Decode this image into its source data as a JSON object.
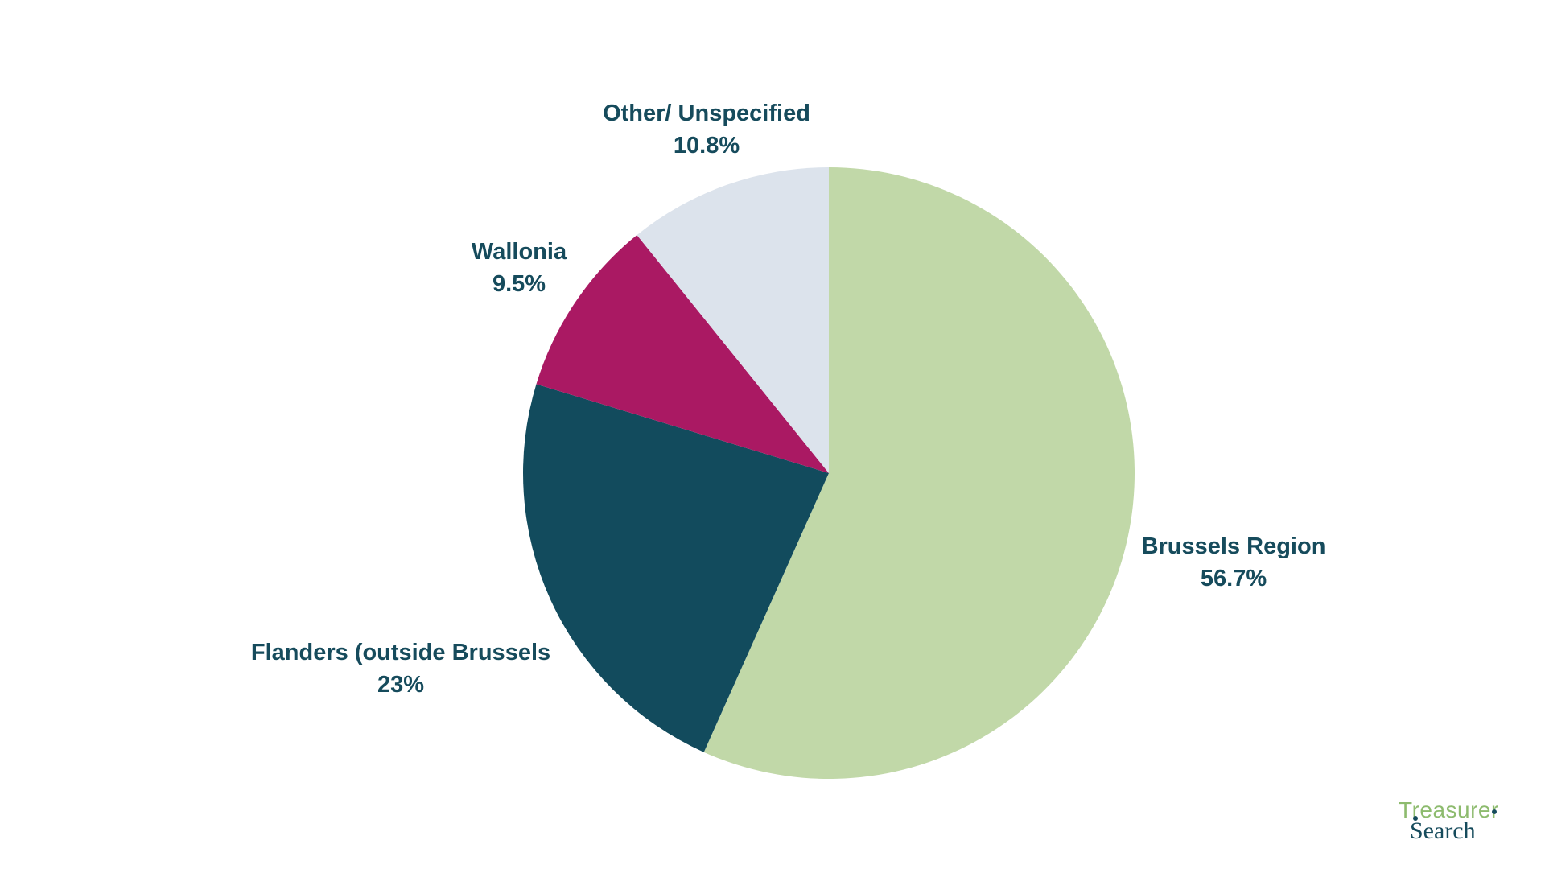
{
  "chart_data": {
    "type": "pie",
    "title": "",
    "slices": [
      {
        "label": "Brussels Region",
        "value_label": "56.7%",
        "value": 56.7,
        "color": "#c1d8a8"
      },
      {
        "label": "Flanders (outside Brussels",
        "value_label": "23%",
        "value": 23,
        "color": "#124b5d"
      },
      {
        "label": "Wallonia",
        "value_label": "9.5%",
        "value": 9.5,
        "color": "#aa1963"
      },
      {
        "label": "Other/ Unspecified",
        "value_label": "10.8%",
        "value": 10.8,
        "color": "#dce3ec"
      }
    ],
    "start_angle": "12 o'clock",
    "direction": "clockwise",
    "label_color": "#164b5c"
  },
  "logo": {
    "line1": "Treasurer",
    "line2": "Search",
    "accent_color": "#8dbb6e",
    "dark_color": "#164b5c"
  }
}
